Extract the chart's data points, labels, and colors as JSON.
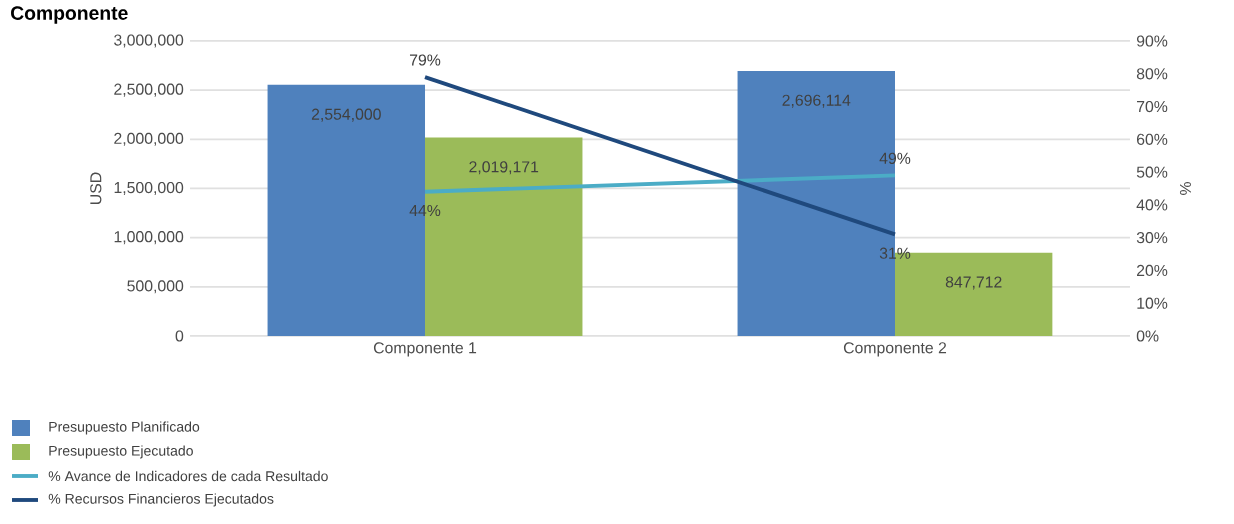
{
  "chart_data": {
    "type": "bar",
    "title": "Componente",
    "ylabel": "USD",
    "y2label": "%",
    "categories": [
      "Componente 1",
      "Componente 2"
    ],
    "series": [
      {
        "name": "Presupuesto Planificado",
        "color": "#4f81bd",
        "values": [
          2554000,
          2696114
        ],
        "value_labels": [
          "2,554,000",
          "2,696,114"
        ]
      },
      {
        "name": "Presupuesto Ejecutado",
        "color": "#9bbb59",
        "values": [
          2019171,
          847712
        ],
        "value_labels": [
          "2,019,171",
          "847,712"
        ]
      },
      {
        "name": "% Avance de Indicadores de cada Resultado",
        "type": "line",
        "axis": "y2",
        "color": "#4bacc6",
        "values": [
          44,
          49
        ],
        "value_labels": [
          "44%",
          "49%"
        ]
      },
      {
        "name": "% Recursos Financieros Ejecutados",
        "type": "line",
        "axis": "y2",
        "color": "#1f497d",
        "values": [
          79,
          31
        ],
        "value_labels": [
          "79%",
          "31%"
        ]
      }
    ],
    "ylim": [
      0,
      3000000
    ],
    "yticks": [
      {
        "value": 0,
        "label": "0"
      },
      {
        "value": 500000,
        "label": "500,000"
      },
      {
        "value": 1000000,
        "label": "1,000,000"
      },
      {
        "value": 1500000,
        "label": "1,500,000"
      },
      {
        "value": 2000000,
        "label": "2,000,000"
      },
      {
        "value": 2500000,
        "label": "2,500,000"
      },
      {
        "value": 3000000,
        "label": "3,000,000"
      }
    ],
    "y2lim": [
      0,
      90
    ],
    "y2ticks": [
      {
        "value": 0,
        "label": "0%"
      },
      {
        "value": 10,
        "label": "10%"
      },
      {
        "value": 20,
        "label": "20%"
      },
      {
        "value": 30,
        "label": "30%"
      },
      {
        "value": 40,
        "label": "40%"
      },
      {
        "value": 50,
        "label": "50%"
      },
      {
        "value": 60,
        "label": "60%"
      },
      {
        "value": 70,
        "label": "70%"
      },
      {
        "value": 80,
        "label": "80%"
      },
      {
        "value": 90,
        "label": "90%"
      }
    ],
    "grid": "y",
    "legend": "bottom left",
    "marker": "none",
    "line_style": "solid"
  }
}
